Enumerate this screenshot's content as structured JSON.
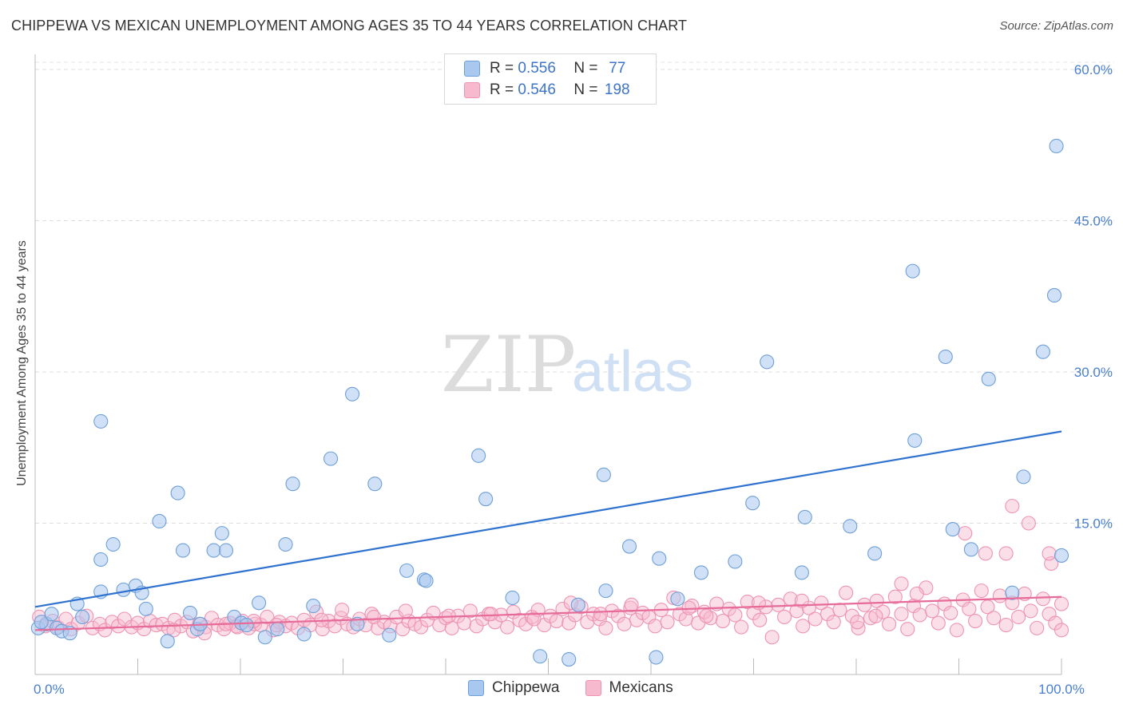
{
  "title": "CHIPPEWA VS MEXICAN UNEMPLOYMENT AMONG AGES 35 TO 44 YEARS CORRELATION CHART",
  "source": "Source: ZipAtlas.com",
  "watermark": {
    "zip": "ZIP",
    "atlas": "atlas"
  },
  "legend": {
    "r_label": "R =",
    "n_label": "N =",
    "series": [
      {
        "name": "Chippewa",
        "r": "0.556",
        "n": "77"
      },
      {
        "name": "Mexicans",
        "r": "0.546",
        "n": "198"
      }
    ]
  },
  "colors": {
    "chippewa_fill": "#a9c8f0",
    "chippewa_stroke": "#6e9fd8",
    "chippewa_line": "#2f72cf",
    "mexicans_fill": "#f7b9cd",
    "mexicans_stroke": "#ee93b2",
    "mexicans_line": "#e66b98",
    "axis_text": "#4a7fd0"
  },
  "chart_data": {
    "type": "scatter",
    "title": "CHIPPEWA VS MEXICAN UNEMPLOYMENT AMONG AGES 35 TO 44 YEARS CORRELATION CHART",
    "xlabel": "",
    "ylabel": "Unemployment Among Ages 35 to 44 years",
    "xlim": [
      0,
      100
    ],
    "ylim": [
      0,
      61.5
    ],
    "x_tick_labels": [
      {
        "value": 0,
        "label": "0.0%"
      },
      {
        "value": 100,
        "label": "100.0%"
      }
    ],
    "y_tick_labels": [
      {
        "value": 15,
        "label": "15.0%"
      },
      {
        "value": 30,
        "label": "30.0%"
      },
      {
        "value": 45,
        "label": "45.0%"
      },
      {
        "value": 60,
        "label": "60.0%"
      }
    ],
    "grid": true,
    "series": [
      {
        "name": "Chippewa",
        "trend": {
          "x": [
            0,
            100
          ],
          "y": [
            6.7,
            24.1
          ]
        },
        "points": [
          [
            0.3,
            4.6
          ],
          [
            1.1,
            5.0
          ],
          [
            2.1,
            4.6
          ],
          [
            2.6,
            4.3
          ],
          [
            3.4,
            4.1
          ],
          [
            4.1,
            7.0
          ],
          [
            4.6,
            5.7
          ],
          [
            6.4,
            11.4
          ],
          [
            7.6,
            12.9
          ],
          [
            6.4,
            8.2
          ],
          [
            8.6,
            8.4
          ],
          [
            6.4,
            25.1
          ],
          [
            9.8,
            8.8
          ],
          [
            10.4,
            8.1
          ],
          [
            10.8,
            6.5
          ],
          [
            12.1,
            15.2
          ],
          [
            12.9,
            3.3
          ],
          [
            13.9,
            18.0
          ],
          [
            14.4,
            12.3
          ],
          [
            15.1,
            6.1
          ],
          [
            15.8,
            4.5
          ],
          [
            16.1,
            5.0
          ],
          [
            17.4,
            12.3
          ],
          [
            18.2,
            14.0
          ],
          [
            18.6,
            12.3
          ],
          [
            19.4,
            5.7
          ],
          [
            20.1,
            5.1
          ],
          [
            20.6,
            4.9
          ],
          [
            21.8,
            7.1
          ],
          [
            22.4,
            3.7
          ],
          [
            23.6,
            4.5
          ],
          [
            24.4,
            12.9
          ],
          [
            25.1,
            18.9
          ],
          [
            26.2,
            4.0
          ],
          [
            27.1,
            6.8
          ],
          [
            28.8,
            21.4
          ],
          [
            30.9,
            27.8
          ],
          [
            31.4,
            5.0
          ],
          [
            33.1,
            18.9
          ],
          [
            34.5,
            3.9
          ],
          [
            36.2,
            10.3
          ],
          [
            37.9,
            9.4
          ],
          [
            38.1,
            9.3
          ],
          [
            43.2,
            21.7
          ],
          [
            43.9,
            17.4
          ],
          [
            46.5,
            7.6
          ],
          [
            49.2,
            1.8
          ],
          [
            52.0,
            1.5
          ],
          [
            52.9,
            6.9
          ],
          [
            55.4,
            19.8
          ],
          [
            55.6,
            8.3
          ],
          [
            57.9,
            12.7
          ],
          [
            60.5,
            1.7
          ],
          [
            60.8,
            11.5
          ],
          [
            62.6,
            7.5
          ],
          [
            64.9,
            10.1
          ],
          [
            68.2,
            11.2
          ],
          [
            69.9,
            17.0
          ],
          [
            71.3,
            31.0
          ],
          [
            74.7,
            10.1
          ],
          [
            75.0,
            15.6
          ],
          [
            79.4,
            14.7
          ],
          [
            81.8,
            12.0
          ],
          [
            85.7,
            23.2
          ],
          [
            85.5,
            40.0
          ],
          [
            88.7,
            31.5
          ],
          [
            89.4,
            14.4
          ],
          [
            91.2,
            12.4
          ],
          [
            92.9,
            29.3
          ],
          [
            95.2,
            8.1
          ],
          [
            96.3,
            19.6
          ],
          [
            98.2,
            32.0
          ],
          [
            99.3,
            37.6
          ],
          [
            99.5,
            52.4
          ],
          [
            100.0,
            11.8
          ],
          [
            0.6,
            5.2
          ],
          [
            1.6,
            6.0
          ]
        ]
      },
      {
        "name": "Mexicans",
        "trend": {
          "x": [
            0,
            100
          ],
          "y": [
            4.4,
            7.7
          ]
        },
        "points": [
          [
            0.4,
            5.7
          ],
          [
            1.0,
            4.8
          ],
          [
            1.7,
            5.3
          ],
          [
            2.2,
            4.7
          ],
          [
            3.0,
            5.5
          ],
          [
            3.5,
            4.5
          ],
          [
            4.2,
            5.1
          ],
          [
            5.0,
            5.8
          ],
          [
            5.6,
            4.6
          ],
          [
            6.3,
            5.0
          ],
          [
            6.8,
            4.4
          ],
          [
            7.5,
            5.2
          ],
          [
            8.1,
            4.8
          ],
          [
            8.7,
            5.5
          ],
          [
            9.4,
            4.7
          ],
          [
            10.0,
            5.1
          ],
          [
            10.6,
            4.5
          ],
          [
            11.2,
            5.3
          ],
          [
            11.8,
            4.9
          ],
          [
            12.4,
            5.0
          ],
          [
            13.0,
            4.6
          ],
          [
            13.6,
            5.4
          ],
          [
            14.2,
            4.8
          ],
          [
            14.8,
            5.2
          ],
          [
            15.4,
            4.3
          ],
          [
            16.0,
            5.0
          ],
          [
            16.6,
            4.7
          ],
          [
            17.2,
            5.6
          ],
          [
            17.8,
            4.9
          ],
          [
            18.4,
            4.5
          ],
          [
            19.0,
            5.1
          ],
          [
            19.6,
            4.8
          ],
          [
            20.2,
            5.3
          ],
          [
            20.8,
            4.6
          ],
          [
            21.4,
            5.0
          ],
          [
            22.0,
            4.9
          ],
          [
            22.6,
            5.7
          ],
          [
            23.2,
            4.4
          ],
          [
            23.8,
            5.2
          ],
          [
            24.4,
            4.8
          ],
          [
            25.0,
            5.1
          ],
          [
            25.6,
            4.6
          ],
          [
            26.2,
            5.4
          ],
          [
            26.8,
            4.9
          ],
          [
            27.4,
            6.2
          ],
          [
            28.0,
            4.5
          ],
          [
            28.6,
            5.3
          ],
          [
            29.2,
            4.8
          ],
          [
            29.8,
            5.6
          ],
          [
            30.4,
            5.0
          ],
          [
            31.0,
            4.7
          ],
          [
            31.6,
            5.5
          ],
          [
            32.2,
            4.9
          ],
          [
            32.8,
            6.0
          ],
          [
            33.4,
            4.6
          ],
          [
            34.0,
            5.2
          ],
          [
            34.6,
            4.8
          ],
          [
            35.2,
            5.7
          ],
          [
            35.8,
            4.5
          ],
          [
            36.4,
            5.3
          ],
          [
            37.0,
            5.0
          ],
          [
            37.6,
            4.7
          ],
          [
            38.2,
            5.4
          ],
          [
            38.8,
            6.1
          ],
          [
            39.4,
            4.9
          ],
          [
            40.0,
            5.6
          ],
          [
            40.6,
            4.6
          ],
          [
            41.2,
            5.8
          ],
          [
            41.8,
            5.1
          ],
          [
            42.4,
            6.3
          ],
          [
            43.0,
            4.8
          ],
          [
            43.6,
            5.5
          ],
          [
            44.2,
            6.0
          ],
          [
            44.8,
            5.2
          ],
          [
            45.4,
            5.9
          ],
          [
            46.0,
            4.7
          ],
          [
            46.6,
            6.2
          ],
          [
            47.2,
            5.4
          ],
          [
            47.8,
            5.0
          ],
          [
            48.4,
            5.7
          ],
          [
            49.0,
            6.4
          ],
          [
            49.6,
            4.9
          ],
          [
            50.2,
            5.8
          ],
          [
            50.8,
            5.3
          ],
          [
            51.4,
            6.5
          ],
          [
            52.0,
            5.1
          ],
          [
            52.6,
            5.9
          ],
          [
            53.2,
            6.7
          ],
          [
            53.8,
            5.2
          ],
          [
            54.4,
            6.0
          ],
          [
            55.0,
            5.5
          ],
          [
            55.6,
            4.6
          ],
          [
            56.2,
            6.3
          ],
          [
            56.8,
            5.8
          ],
          [
            57.4,
            5.0
          ],
          [
            58.0,
            6.6
          ],
          [
            58.6,
            5.4
          ],
          [
            59.2,
            6.1
          ],
          [
            59.8,
            5.7
          ],
          [
            60.4,
            4.8
          ],
          [
            61.0,
            6.4
          ],
          [
            61.6,
            5.2
          ],
          [
            62.2,
            7.6
          ],
          [
            62.8,
            6.0
          ],
          [
            63.4,
            5.5
          ],
          [
            64.0,
            6.8
          ],
          [
            64.6,
            5.1
          ],
          [
            65.2,
            6.2
          ],
          [
            65.8,
            5.6
          ],
          [
            66.4,
            7.0
          ],
          [
            67.0,
            5.3
          ],
          [
            67.6,
            6.5
          ],
          [
            68.2,
            5.9
          ],
          [
            68.8,
            4.7
          ],
          [
            69.4,
            7.2
          ],
          [
            70.0,
            6.1
          ],
          [
            70.6,
            5.4
          ],
          [
            71.2,
            6.7
          ],
          [
            71.8,
            3.7
          ],
          [
            72.4,
            6.9
          ],
          [
            73.0,
            5.7
          ],
          [
            73.6,
            7.5
          ],
          [
            74.2,
            6.3
          ],
          [
            74.8,
            4.8
          ],
          [
            75.4,
            6.6
          ],
          [
            76.0,
            5.5
          ],
          [
            76.6,
            7.1
          ],
          [
            77.2,
            6.0
          ],
          [
            77.8,
            5.2
          ],
          [
            78.4,
            6.4
          ],
          [
            79.0,
            8.1
          ],
          [
            79.6,
            5.8
          ],
          [
            80.2,
            4.6
          ],
          [
            80.8,
            6.9
          ],
          [
            81.4,
            5.6
          ],
          [
            82.0,
            7.3
          ],
          [
            82.6,
            6.2
          ],
          [
            83.2,
            5.0
          ],
          [
            83.8,
            7.7
          ],
          [
            84.4,
            6.0
          ],
          [
            85.0,
            4.5
          ],
          [
            85.6,
            6.8
          ],
          [
            86.2,
            5.9
          ],
          [
            86.8,
            8.6
          ],
          [
            87.4,
            6.3
          ],
          [
            88.0,
            5.1
          ],
          [
            88.6,
            7.0
          ],
          [
            89.2,
            6.1
          ],
          [
            89.8,
            4.4
          ],
          [
            90.4,
            7.4
          ],
          [
            91.0,
            6.5
          ],
          [
            91.6,
            5.3
          ],
          [
            92.2,
            8.3
          ],
          [
            92.8,
            6.7
          ],
          [
            93.4,
            5.6
          ],
          [
            94.0,
            7.8
          ],
          [
            94.6,
            4.9
          ],
          [
            95.2,
            7.1
          ],
          [
            95.8,
            5.7
          ],
          [
            96.4,
            8.0
          ],
          [
            97.0,
            6.3
          ],
          [
            97.6,
            4.6
          ],
          [
            98.2,
            7.5
          ],
          [
            98.8,
            6.0
          ],
          [
            99.4,
            5.1
          ],
          [
            100.0,
            4.4
          ],
          [
            100.0,
            7.0
          ],
          [
            99.0,
            11.0
          ],
          [
            98.8,
            12.0
          ],
          [
            96.8,
            15.0
          ],
          [
            94.6,
            12.0
          ],
          [
            95.2,
            16.7
          ],
          [
            92.6,
            12.0
          ],
          [
            90.6,
            14.0
          ],
          [
            85.9,
            8.0
          ],
          [
            84.4,
            9.0
          ],
          [
            80.1,
            5.2
          ],
          [
            81.9,
            5.8
          ],
          [
            74.7,
            7.3
          ],
          [
            70.5,
            7.1
          ],
          [
            65.4,
            5.8
          ],
          [
            63.7,
            6.6
          ],
          [
            58.1,
            6.9
          ],
          [
            55.1,
            6.0
          ],
          [
            52.2,
            7.1
          ],
          [
            48.6,
            5.5
          ],
          [
            44.4,
            6.0
          ],
          [
            40.3,
            5.8
          ],
          [
            36.1,
            6.3
          ],
          [
            33.0,
            5.7
          ],
          [
            29.9,
            6.4
          ],
          [
            27.9,
            5.4
          ],
          [
            23.5,
            4.9
          ],
          [
            21.3,
            5.3
          ],
          [
            19.7,
            4.7
          ],
          [
            18.6,
            5.0
          ],
          [
            16.5,
            4.1
          ],
          [
            13.5,
            4.4
          ]
        ]
      }
    ]
  }
}
